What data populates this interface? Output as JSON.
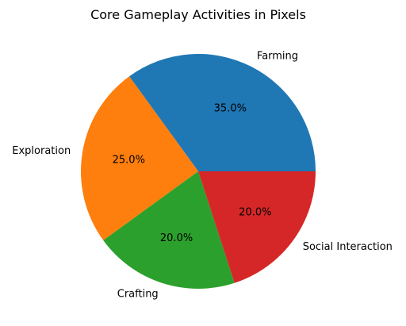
{
  "chart_data": {
    "type": "pie",
    "title": "Core Gameplay Activities in Pixels",
    "categories": [
      "Farming",
      "Exploration",
      "Crafting",
      "Social Interaction"
    ],
    "values": [
      35.0,
      25.0,
      20.0,
      20.0
    ],
    "percent_labels": [
      "35.0%",
      "25.0%",
      "20.0%",
      "20.0%"
    ],
    "colors": [
      "#1f77b4",
      "#ff7f0e",
      "#2ca02c",
      "#d62728"
    ],
    "start_angle_deg": 0,
    "direction": "counterclockwise",
    "legend": "none"
  }
}
